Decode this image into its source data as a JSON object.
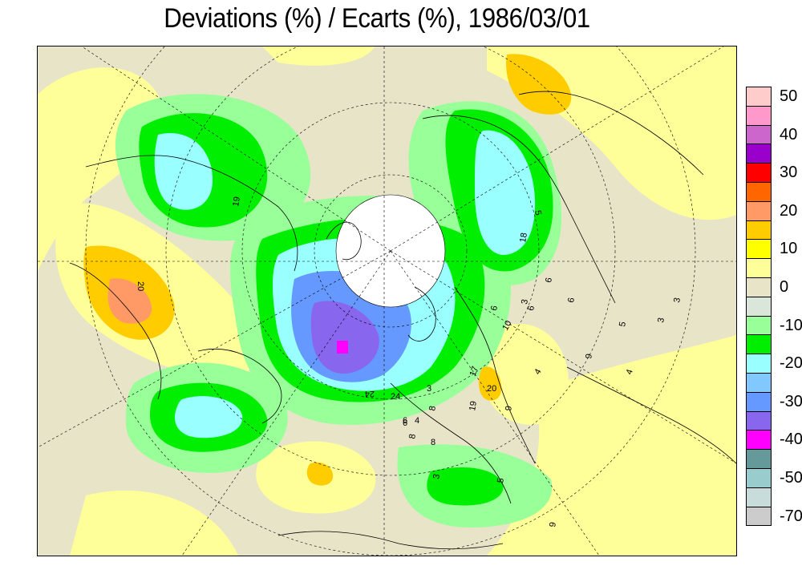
{
  "title": "Deviations (%) / Ecarts (%), 1986/03/01",
  "legend": {
    "swatches": [
      {
        "color": "#ffcccc"
      },
      {
        "color": "#ff99cc"
      },
      {
        "color": "#cc66cc"
      },
      {
        "color": "#9900cc"
      },
      {
        "color": "#ff0000"
      },
      {
        "color": "#ff6600"
      },
      {
        "color": "#ff9966"
      },
      {
        "color": "#ffcc00"
      },
      {
        "color": "#ffff00"
      },
      {
        "color": "#ffff99"
      },
      {
        "color": "#e8e4c8"
      },
      {
        "color": "#d9e6d9"
      },
      {
        "color": "#99ff99"
      },
      {
        "color": "#00ee00"
      },
      {
        "color": "#99ffff"
      },
      {
        "color": "#80c8ff"
      },
      {
        "color": "#6699ff"
      },
      {
        "color": "#8866ee"
      },
      {
        "color": "#ff00ff"
      },
      {
        "color": "#669999"
      },
      {
        "color": "#99cccc"
      },
      {
        "color": "#c8dcdc"
      },
      {
        "color": "#cccccc"
      }
    ],
    "labels": [
      "50",
      "40",
      "30",
      "20",
      "10",
      "0",
      "-10",
      "-20",
      "-30",
      "-40",
      "-50",
      "-70"
    ]
  },
  "contour_labels": [
    "19",
    "20",
    "5",
    "18",
    "6",
    "6",
    "6",
    "3",
    "10",
    "17",
    "20",
    "9",
    "19",
    "9",
    "4",
    "4",
    "3",
    "3",
    "5",
    "6",
    "24",
    "24",
    "8",
    "8",
    "6",
    "6",
    "4",
    "3",
    "5",
    "9",
    "3",
    "8"
  ]
}
